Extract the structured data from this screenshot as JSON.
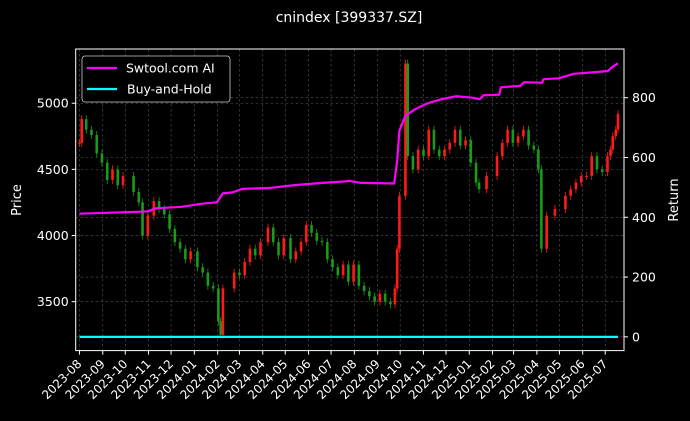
{
  "chart_data": {
    "type": "candlestick+line",
    "title": "cnindex [399337.SZ]",
    "ylabel_left": "Price",
    "ylabel_right": "Return",
    "xlim": [
      "2023-07-27",
      "2025-07-26"
    ],
    "ylim_left": [
      3130,
      5410
    ],
    "ylim_right": [
      -46,
      963
    ],
    "grid": true,
    "legend_position": "top-left",
    "x_ticks": [
      "2023-08",
      "2023-09",
      "2023-10",
      "2023-11",
      "2023-12",
      "2024-01",
      "2024-02",
      "2024-03",
      "2024-04",
      "2024-05",
      "2024-06",
      "2024-07",
      "2024-08",
      "2024-09",
      "2024-10",
      "2024-11",
      "2024-12",
      "2025-01",
      "2025-02",
      "2025-03",
      "2025-04",
      "2025-05",
      "2025-06",
      "2025-07"
    ],
    "y_ticks_left": [
      3500,
      4000,
      4500,
      5000
    ],
    "y_ticks_right": [
      0,
      200,
      400,
      600,
      800
    ],
    "colors": {
      "up": "#ff1a1a",
      "down": "#1a9a1a",
      "strategy": "#ff00ff",
      "buy_hold": "#00ffff",
      "background": "#000000",
      "grid": "#555555"
    },
    "price_close": [
      [
        "2023-08-01",
        4700
      ],
      [
        "2023-08-04",
        4880
      ],
      [
        "2023-08-10",
        4800
      ],
      [
        "2023-08-17",
        4760
      ],
      [
        "2023-08-24",
        4620
      ],
      [
        "2023-08-31",
        4550
      ],
      [
        "2023-09-07",
        4420
      ],
      [
        "2023-09-14",
        4500
      ],
      [
        "2023-09-21",
        4380
      ],
      [
        "2023-09-28",
        4450
      ],
      [
        "2023-10-12",
        4330
      ],
      [
        "2023-10-19",
        4250
      ],
      [
        "2023-10-24",
        4000
      ],
      [
        "2023-10-31",
        4150
      ],
      [
        "2023-11-08",
        4260
      ],
      [
        "2023-11-15",
        4200
      ],
      [
        "2023-11-22",
        4160
      ],
      [
        "2023-11-29",
        4050
      ],
      [
        "2023-12-06",
        3950
      ],
      [
        "2023-12-13",
        3900
      ],
      [
        "2023-12-20",
        3820
      ],
      [
        "2023-12-27",
        3880
      ],
      [
        "2024-01-05",
        3760
      ],
      [
        "2024-01-12",
        3720
      ],
      [
        "2024-01-19",
        3620
      ],
      [
        "2024-01-26",
        3600
      ],
      [
        "2024-02-02",
        3350
      ],
      [
        "2024-02-05",
        3250
      ],
      [
        "2024-02-08",
        3600
      ],
      [
        "2024-02-23",
        3720
      ],
      [
        "2024-03-01",
        3700
      ],
      [
        "2024-03-08",
        3800
      ],
      [
        "2024-03-15",
        3900
      ],
      [
        "2024-03-22",
        3850
      ],
      [
        "2024-03-29",
        3950
      ],
      [
        "2024-04-08",
        4060
      ],
      [
        "2024-04-15",
        3950
      ],
      [
        "2024-04-22",
        3850
      ],
      [
        "2024-04-29",
        3980
      ],
      [
        "2024-05-08",
        3820
      ],
      [
        "2024-05-15",
        3880
      ],
      [
        "2024-05-22",
        3950
      ],
      [
        "2024-05-29",
        4080
      ],
      [
        "2024-06-05",
        4020
      ],
      [
        "2024-06-12",
        3960
      ],
      [
        "2024-06-19",
        3950
      ],
      [
        "2024-06-26",
        3820
      ],
      [
        "2024-07-03",
        3760
      ],
      [
        "2024-07-10",
        3700
      ],
      [
        "2024-07-17",
        3780
      ],
      [
        "2024-07-24",
        3650
      ],
      [
        "2024-07-31",
        3780
      ],
      [
        "2024-08-07",
        3620
      ],
      [
        "2024-08-14",
        3580
      ],
      [
        "2024-08-21",
        3540
      ],
      [
        "2024-08-28",
        3500
      ],
      [
        "2024-09-04",
        3560
      ],
      [
        "2024-09-11",
        3500
      ],
      [
        "2024-09-18",
        3480
      ],
      [
        "2024-09-24",
        3600
      ],
      [
        "2024-09-27",
        3900
      ],
      [
        "2024-09-30",
        4300
      ],
      [
        "2024-10-08",
        5300
      ],
      [
        "2024-10-11",
        4600
      ],
      [
        "2024-10-18",
        4500
      ],
      [
        "2024-10-25",
        4650
      ],
      [
        "2024-11-01",
        4600
      ],
      [
        "2024-11-08",
        4800
      ],
      [
        "2024-11-15",
        4650
      ],
      [
        "2024-11-22",
        4600
      ],
      [
        "2024-11-29",
        4650
      ],
      [
        "2024-12-06",
        4700
      ],
      [
        "2024-12-13",
        4800
      ],
      [
        "2024-12-20",
        4680
      ],
      [
        "2024-12-27",
        4720
      ],
      [
        "2025-01-03",
        4550
      ],
      [
        "2025-01-10",
        4400
      ],
      [
        "2025-01-14",
        4350
      ],
      [
        "2025-01-24",
        4450
      ],
      [
        "2025-02-07",
        4600
      ],
      [
        "2025-02-14",
        4700
      ],
      [
        "2025-02-21",
        4800
      ],
      [
        "2025-02-28",
        4700
      ],
      [
        "2025-03-07",
        4750
      ],
      [
        "2025-03-14",
        4800
      ],
      [
        "2025-03-21",
        4680
      ],
      [
        "2025-03-28",
        4650
      ],
      [
        "2025-04-03",
        4500
      ],
      [
        "2025-04-07",
        3900
      ],
      [
        "2025-04-14",
        4150
      ],
      [
        "2025-04-25",
        4200
      ],
      [
        "2025-05-09",
        4300
      ],
      [
        "2025-05-16",
        4350
      ],
      [
        "2025-05-23",
        4400
      ],
      [
        "2025-05-30",
        4450
      ],
      [
        "2025-06-06",
        4450
      ],
      [
        "2025-06-13",
        4600
      ],
      [
        "2025-06-20",
        4500
      ],
      [
        "2025-06-27",
        4480
      ],
      [
        "2025-07-04",
        4600
      ],
      [
        "2025-07-08",
        4650
      ],
      [
        "2025-07-11",
        4750
      ],
      [
        "2025-07-15",
        4800
      ],
      [
        "2025-07-18",
        4920
      ]
    ],
    "series": [
      {
        "name": "Swtool.com AI",
        "axis": "right",
        "values": [
          [
            "2023-08-01",
            412
          ],
          [
            "2023-10-15",
            418
          ],
          [
            "2023-11-01",
            420
          ],
          [
            "2023-11-10",
            430
          ],
          [
            "2023-12-15",
            435
          ],
          [
            "2024-01-10",
            445
          ],
          [
            "2024-01-31",
            450
          ],
          [
            "2024-02-08",
            480
          ],
          [
            "2024-02-20",
            483
          ],
          [
            "2024-03-05",
            495
          ],
          [
            "2024-04-10",
            498
          ],
          [
            "2024-05-15",
            508
          ],
          [
            "2024-06-20",
            515
          ],
          [
            "2024-07-20",
            520
          ],
          [
            "2024-07-25",
            522
          ],
          [
            "2024-08-10",
            515
          ],
          [
            "2024-09-23",
            513
          ],
          [
            "2024-09-27",
            590
          ],
          [
            "2024-09-30",
            690
          ],
          [
            "2024-10-08",
            740
          ],
          [
            "2024-10-20",
            760
          ],
          [
            "2024-11-05",
            780
          ],
          [
            "2024-11-25",
            795
          ],
          [
            "2024-12-15",
            805
          ],
          [
            "2025-01-05",
            800
          ],
          [
            "2025-01-15",
            795
          ],
          [
            "2025-01-20",
            808
          ],
          [
            "2025-02-10",
            810
          ],
          [
            "2025-02-12",
            835
          ],
          [
            "2025-03-10",
            840
          ],
          [
            "2025-03-15",
            852
          ],
          [
            "2025-04-08",
            850
          ],
          [
            "2025-04-10",
            862
          ],
          [
            "2025-04-30",
            865
          ],
          [
            "2025-05-20",
            880
          ],
          [
            "2025-06-30",
            888
          ],
          [
            "2025-07-05",
            890
          ],
          [
            "2025-07-10",
            902
          ],
          [
            "2025-07-18",
            915
          ]
        ]
      },
      {
        "name": "Buy-and-Hold",
        "axis": "right",
        "values": [
          [
            "2023-08-01",
            0
          ],
          [
            "2025-07-18",
            0
          ]
        ]
      }
    ]
  }
}
